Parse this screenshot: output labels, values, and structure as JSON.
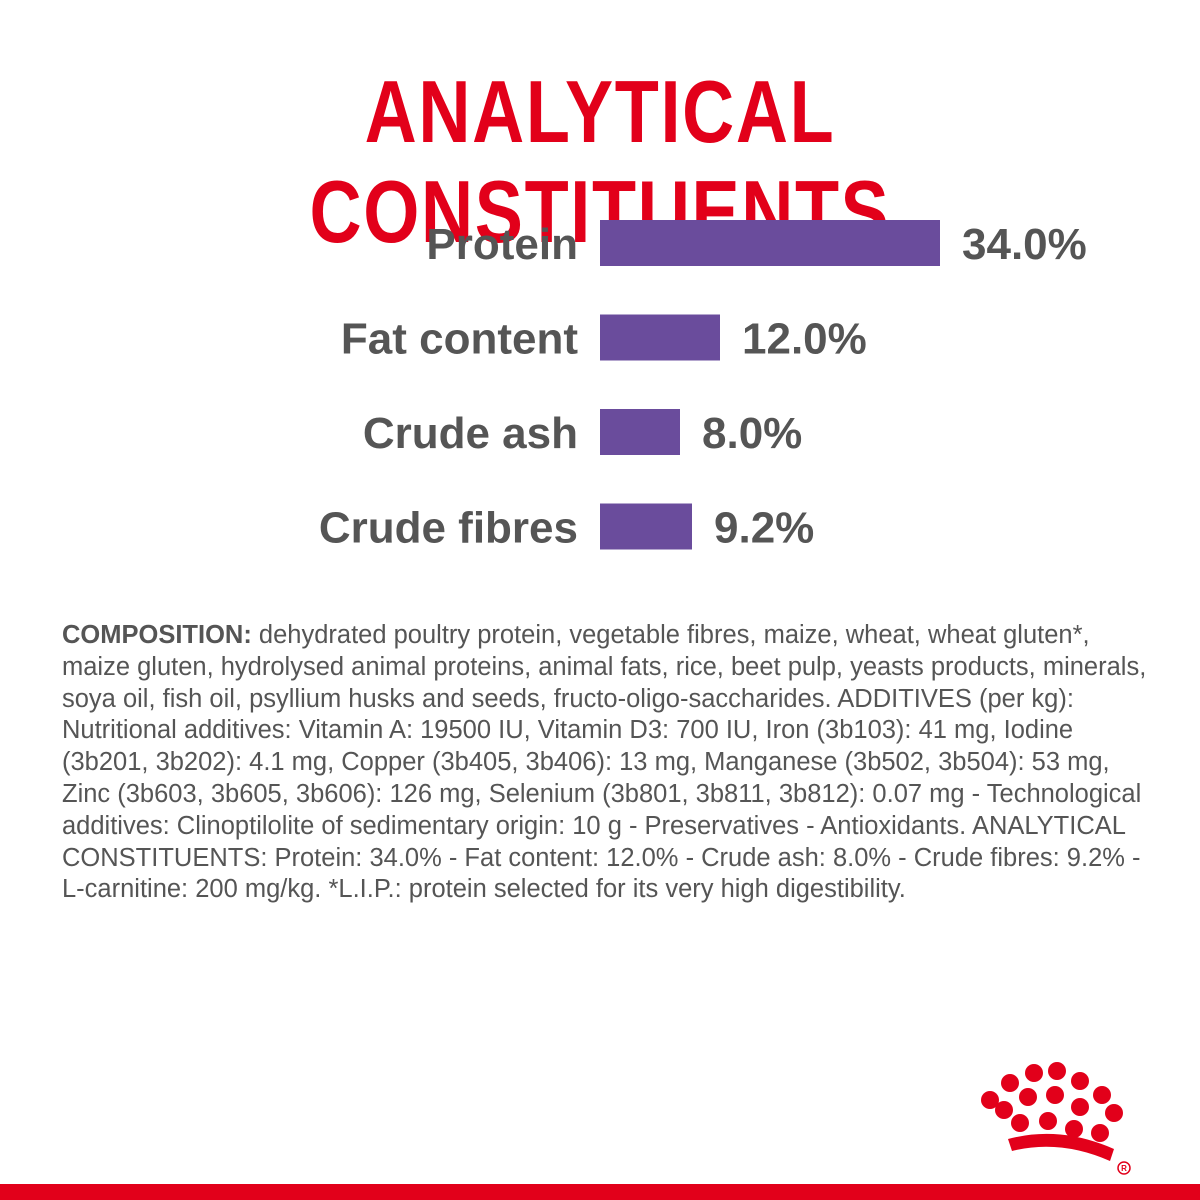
{
  "title": "ANALYTICAL CONSTITUENTS",
  "chart_data": {
    "type": "bar",
    "orientation": "horizontal",
    "categories": [
      "Protein",
      "Fat content",
      "Crude ash",
      "Crude fibres"
    ],
    "values": [
      34.0,
      12.0,
      8.0,
      9.2
    ],
    "value_labels": [
      "34.0%",
      "12.0%",
      "8.0%",
      "9.2%"
    ],
    "unit": "%",
    "xlim": [
      0,
      34.0
    ],
    "grid": false,
    "legend": "none"
  },
  "composition": {
    "heading": "COMPOSITION:",
    "text": " dehydrated poultry protein, vegetable fibres, maize, wheat, wheat gluten*, maize gluten, hydrolysed animal proteins, animal fats, rice, beet pulp, yeasts products, minerals, soya oil, fish oil, psyllium husks and seeds, fructo-oligo-saccharides. ADDITIVES (per kg): Nutritional additives: Vitamin A: 19500 IU, Vitamin D3: 700 IU, Iron (3b103): 41 mg, Iodine (3b201, 3b202): 4.1 mg, Copper (3b405, 3b406): 13 mg, Manganese (3b502, 3b504): 53 mg, Zinc (3b603, 3b605, 3b606): 126 mg, Selenium (3b801, 3b811, 3b812): 0.07 mg - Technological additives: Clinoptilolite of sedimentary origin: 10 g - Preservatives - Antioxidants. ANALYTICAL CONSTITUENTS: Protein: 34.0% - Fat content: 12.0% - Crude ash: 8.0% - Crude fibres: 9.2% - L-carnitine: 200 mg/kg. *L.I.P.: protein selected for its very high digestibility."
  },
  "logo": {
    "icon": "crown-icon",
    "registered_mark": "®"
  },
  "colors": {
    "brand_red": "#E2001A",
    "bar_purple": "#6A4C9C",
    "text_gray": "#555555"
  }
}
